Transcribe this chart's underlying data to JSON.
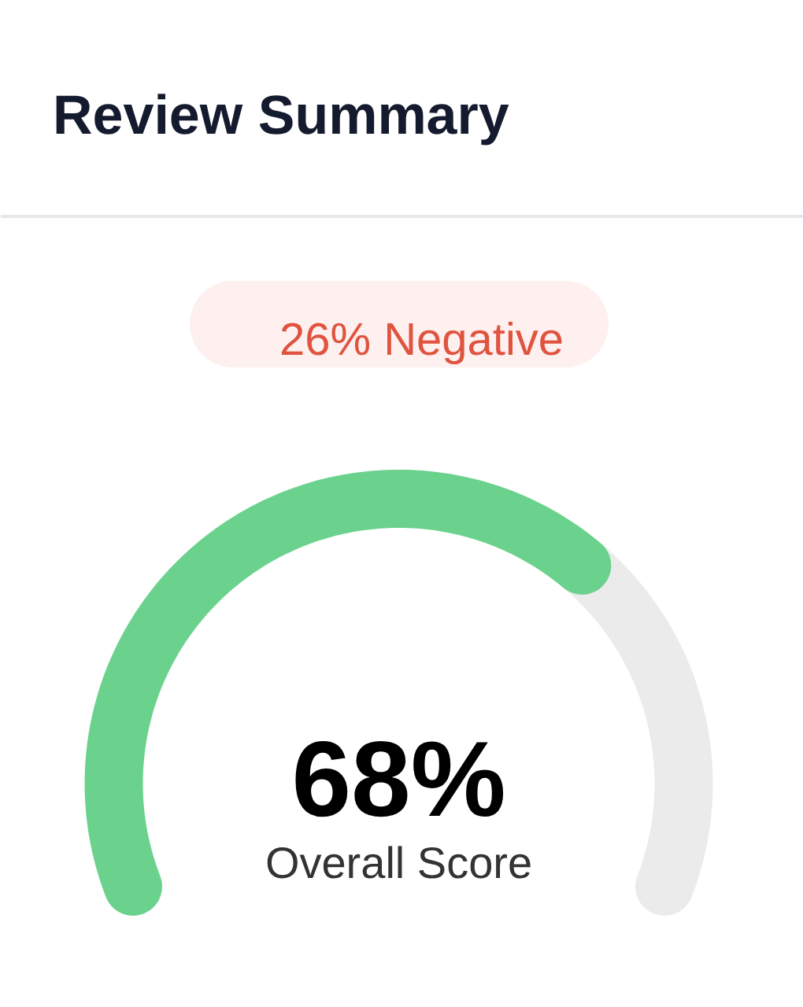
{
  "chart_data": {
    "type": "donut",
    "title": "Review Summary",
    "categories": [
      null,
      null
    ],
    "values": [
      68,
      32
    ],
    "colors": [
      "#6bd28d",
      "#ebebeb"
    ],
    "value_labels": [
      "68%",
      null
    ],
    "annotations": [
      "26% Negative",
      "Overall Score"
    ]
  }
}
